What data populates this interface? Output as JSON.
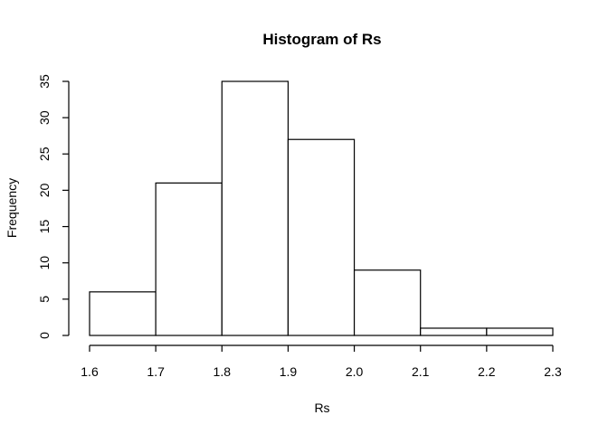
{
  "chart_data": {
    "type": "bar",
    "title": "Histogram of Rs",
    "xlabel": "Rs",
    "ylabel": "Frequency",
    "bins": [
      {
        "start": 1.6,
        "end": 1.7,
        "count": 6
      },
      {
        "start": 1.7,
        "end": 1.8,
        "count": 21
      },
      {
        "start": 1.8,
        "end": 1.9,
        "count": 35
      },
      {
        "start": 1.9,
        "end": 2.0,
        "count": 27
      },
      {
        "start": 2.0,
        "end": 2.1,
        "count": 9
      },
      {
        "start": 2.1,
        "end": 2.2,
        "count": 1
      },
      {
        "start": 2.2,
        "end": 2.3,
        "count": 1
      }
    ],
    "xlim": [
      1.6,
      2.3
    ],
    "ylim": [
      0,
      35
    ],
    "x_ticks": [
      "1.6",
      "1.7",
      "1.8",
      "1.9",
      "2.0",
      "2.1",
      "2.2",
      "2.3"
    ],
    "y_ticks": [
      "0",
      "5",
      "10",
      "15",
      "20",
      "25",
      "30",
      "35"
    ],
    "grid": false,
    "bar_fill": "#ffffff",
    "bar_stroke": "#000000"
  }
}
